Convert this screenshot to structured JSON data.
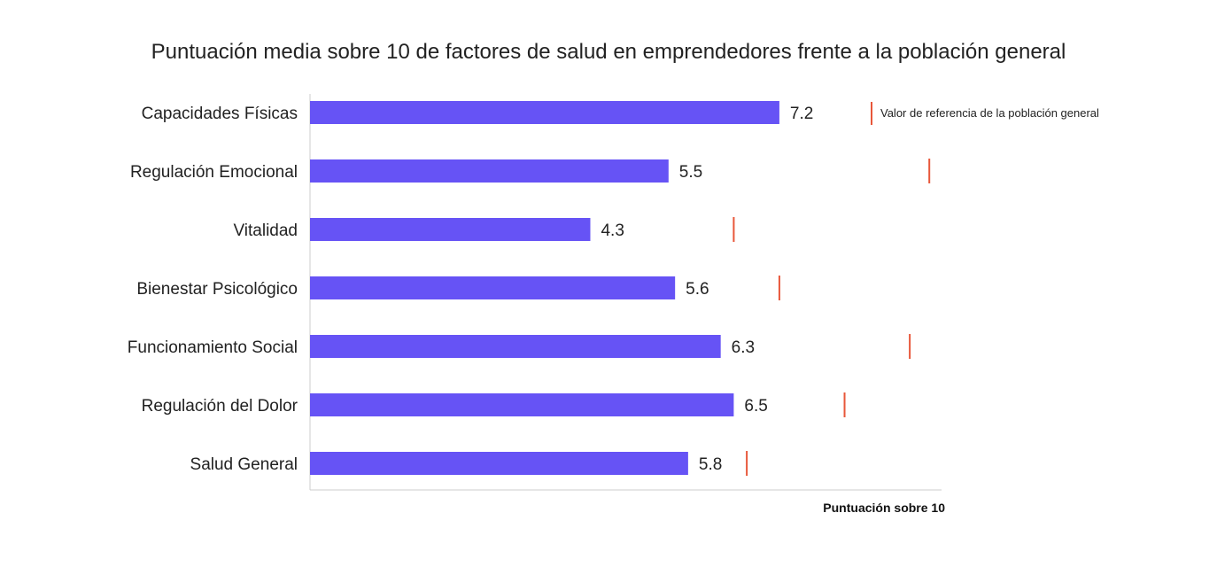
{
  "colors": {
    "bar": "#6653F5",
    "reference": "#E8573A",
    "axis": "#cccccc",
    "text": "#222222"
  },
  "chart_data": {
    "type": "bar",
    "orientation": "horizontal",
    "title": "Puntuación media sobre 10 de factores de salud en emprendedores frente a la población general",
    "xlabel": "Puntuación sobre 10",
    "ylabel": "",
    "xlim": [
      0,
      10
    ],
    "grid": false,
    "legend_position": "top-right",
    "categories": [
      "Capacidades Físicas",
      "Regulación Emocional",
      "Vitalidad",
      "Bienestar Psicológico",
      "Funcionamiento Social",
      "Regulación del Dolor",
      "Salud General"
    ],
    "series": [
      {
        "values": [
          7.2,
          5.5,
          4.3,
          5.6,
          6.3,
          6.5,
          5.8
        ]
      }
    ],
    "reference": {
      "name": "Valor de referencia de la población general",
      "values": [
        8.9,
        9.5,
        6.5,
        7.2,
        9.2,
        8.2,
        6.7
      ]
    },
    "data_labels": [
      "7.2",
      "5.5",
      "4.3",
      "5.6",
      "6.3",
      "6.5",
      "5.8"
    ]
  }
}
